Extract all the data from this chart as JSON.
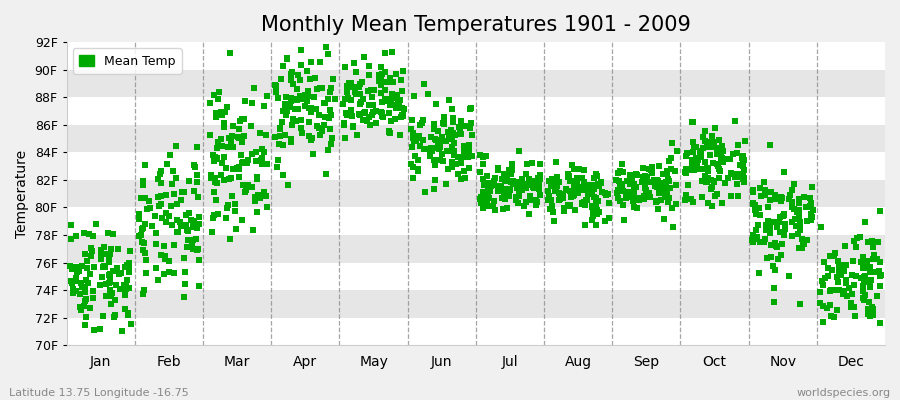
{
  "title": "Monthly Mean Temperatures 1901 - 2009",
  "ylabel": "Temperature",
  "xlabel_labels": [
    "Jan",
    "Feb",
    "Mar",
    "Apr",
    "May",
    "Jun",
    "Jul",
    "Aug",
    "Sep",
    "Oct",
    "Nov",
    "Dec"
  ],
  "ytick_labels": [
    "70F",
    "72F",
    "74F",
    "76F",
    "78F",
    "80F",
    "82F",
    "84F",
    "86F",
    "88F",
    "90F",
    "92F"
  ],
  "ytick_values": [
    70,
    72,
    74,
    76,
    78,
    80,
    82,
    84,
    86,
    88,
    90,
    92
  ],
  "ylim": [
    70,
    92
  ],
  "marker_color": "#00aa00",
  "marker": "s",
  "marker_size": 4,
  "legend_label": "Mean Temp",
  "footer_left": "Latitude 13.75 Longitude -16.75",
  "footer_right": "worldspecies.org",
  "bg_color": "#f0f0f0",
  "band_colors": [
    "#ffffff",
    "#e6e6e6"
  ],
  "title_fontsize": 15,
  "n_years": 109,
  "monthly_means": [
    75.0,
    78.5,
    83.5,
    87.5,
    87.5,
    84.5,
    81.5,
    81.0,
    81.5,
    83.0,
    79.0,
    75.0
  ],
  "monthly_stds": [
    2.0,
    2.5,
    2.5,
    2.2,
    1.5,
    1.5,
    1.0,
    1.0,
    1.0,
    1.2,
    2.0,
    1.8
  ],
  "seed": 42
}
